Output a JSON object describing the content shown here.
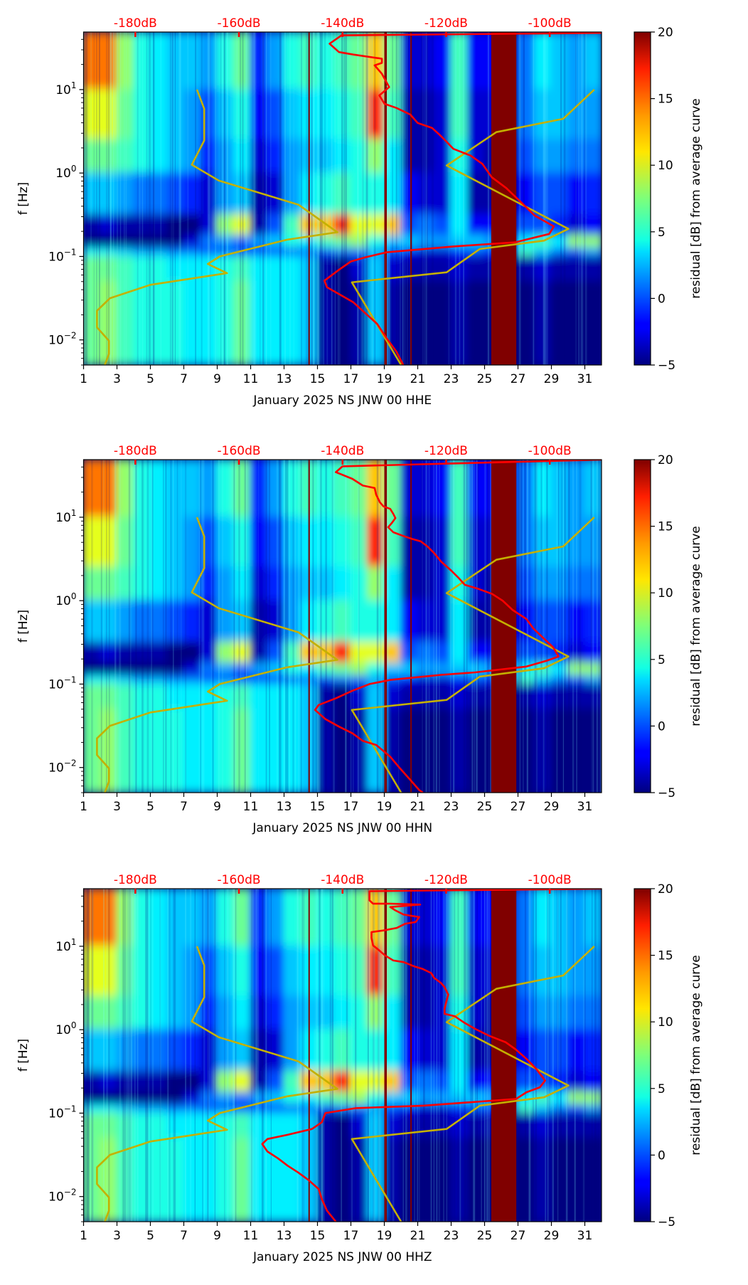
{
  "figure": {
    "ylabel": "f [Hz]",
    "colorbar_label": "residual [dB] from average curve"
  },
  "shared": {
    "xlim": [
      1,
      32
    ],
    "ylim_hz": [
      0.005,
      49
    ],
    "db_lim": [
      -190,
      -90
    ],
    "x_ticks": [
      1,
      3,
      5,
      7,
      9,
      11,
      13,
      15,
      17,
      19,
      21,
      23,
      25,
      27,
      29,
      31
    ],
    "x_tick_labels": [
      "1",
      "3",
      "5",
      "7",
      "9",
      "11",
      "13",
      "15",
      "17",
      "19",
      "21",
      "23",
      "25",
      "27",
      "29",
      "31"
    ],
    "y_ticks": [
      {
        "value": 10,
        "base": "10",
        "exp": "1"
      },
      {
        "value": 1,
        "base": "10",
        "exp": "0"
      },
      {
        "value": 0.1,
        "base": "10",
        "exp": "−1"
      },
      {
        "value": 0.01,
        "base": "10",
        "exp": "−2"
      }
    ],
    "top_ticks": [
      {
        "value": -180,
        "label": "-180dB"
      },
      {
        "value": -160,
        "label": "-160dB"
      },
      {
        "value": -140,
        "label": "-140dB"
      },
      {
        "value": -120,
        "label": "-120dB"
      },
      {
        "value": -100,
        "label": "-100dB"
      }
    ],
    "colorbar": {
      "range": [
        -5,
        20
      ],
      "ticks": [
        -5,
        0,
        5,
        10,
        15,
        20
      ],
      "tick_labels": [
        "−5",
        "0",
        "5",
        "10",
        "15",
        "20"
      ],
      "colormap": "jet"
    },
    "colors": {
      "psd_curve": "#ff0000",
      "noise_model": "#c4b000",
      "gap_marker": "#800000",
      "top_axis": "#ff0000"
    },
    "gap_markers": {
      "thin_lines_day": [
        14.5,
        20.6
      ],
      "thick_line_days": [
        19.0,
        19.15
      ],
      "band_days": [
        25.4,
        26.9
      ],
      "band_value": 20
    },
    "noise_model_low": [
      [
        -168.1,
        1.0
      ],
      [
        -166.7,
        0.77
      ],
      [
        -166.7,
        0.39
      ],
      [
        -169.1,
        0.1
      ],
      [
        -163.9,
        -0.09
      ],
      [
        -148.5,
        -0.38
      ],
      [
        -141.0,
        -0.71
      ],
      [
        -150.8,
        -0.8
      ],
      [
        -163.7,
        -1.0
      ],
      [
        -166.0,
        -1.09
      ],
      [
        -162.3,
        -1.2
      ],
      [
        -177.1,
        -1.34
      ],
      [
        -184.9,
        -1.5
      ],
      [
        -187.4,
        -1.65
      ],
      [
        -187.4,
        -1.85
      ],
      [
        -185.1,
        -2.01
      ],
      [
        -185.1,
        -2.17
      ],
      [
        -185.9,
        -2.3
      ]
    ],
    "noise_model_high": [
      [
        -91.4,
        1.0
      ],
      [
        -97.4,
        0.65
      ],
      [
        -110.3,
        0.49
      ],
      [
        -119.9,
        0.09
      ],
      [
        -96.4,
        -0.67
      ],
      [
        -101.1,
        -0.81
      ],
      [
        -113.5,
        -0.91
      ],
      [
        -119.9,
        -1.19
      ],
      [
        -138.2,
        -1.31
      ],
      [
        -128.7,
        -2.3
      ]
    ],
    "heatmap": {
      "row_edges_log10_hz": [
        1.69,
        1.0,
        0.4,
        0.0,
        -0.5,
        -0.75,
        -0.9,
        -1.0,
        -1.3,
        -2.301
      ],
      "values_by_day": [
        [
          14,
          10,
          7,
          3,
          -4,
          -5,
          4,
          7,
          7
        ],
        [
          14,
          10,
          7,
          3,
          -3,
          -5,
          4,
          7,
          8
        ],
        [
          8,
          7,
          6,
          2,
          -4,
          -5,
          3,
          6,
          6
        ],
        [
          5,
          5,
          5,
          1,
          -4,
          -5,
          2,
          5,
          5
        ],
        [
          4,
          4,
          4,
          1,
          -4,
          -5,
          2,
          5,
          5
        ],
        [
          3,
          3,
          3,
          0,
          -5,
          -5,
          1,
          4,
          5
        ],
        [
          3,
          2,
          2,
          -1,
          -5,
          -3,
          1,
          4,
          4
        ],
        [
          2,
          0,
          -1,
          -3,
          -3,
          1,
          0,
          4,
          4
        ],
        [
          5,
          3,
          2,
          2,
          8,
          2,
          0,
          5,
          5
        ],
        [
          7,
          5,
          4,
          3,
          10,
          1,
          -1,
          6,
          7
        ],
        [
          -1,
          -2,
          -3,
          -4,
          -4,
          2,
          -2,
          4,
          4
        ],
        [
          2,
          0,
          -1,
          -3,
          0,
          3,
          -1,
          4,
          4
        ],
        [
          5,
          3,
          2,
          2,
          6,
          5,
          0,
          4,
          4
        ],
        [
          6,
          4,
          3,
          4,
          12,
          4,
          1,
          3,
          3
        ],
        [
          5,
          4,
          3,
          5,
          12,
          6,
          0,
          -4,
          -4
        ],
        [
          6,
          5,
          4,
          6,
          16,
          7,
          1,
          -5,
          -5
        ],
        [
          7,
          6,
          5,
          5,
          10,
          8,
          1,
          -3,
          -4
        ],
        [
          12,
          16,
          8,
          5,
          10,
          5,
          2,
          3,
          3
        ],
        [
          7,
          6,
          4,
          4,
          12,
          3,
          0,
          -3,
          -4
        ],
        [
          -3,
          -4,
          -4,
          -2,
          0,
          3,
          -2,
          -4,
          -5
        ],
        [
          -3,
          -4,
          -4,
          -3,
          1,
          2,
          -3,
          -4,
          -5
        ],
        [
          -2,
          -3,
          -3,
          -3,
          0,
          2,
          -3,
          -4,
          -5
        ],
        [
          6,
          6,
          5,
          4,
          4,
          3,
          -1,
          -3,
          -4
        ],
        [
          -2,
          -3,
          -3,
          -4,
          -2,
          3,
          0,
          -4,
          -5
        ],
        [
          -2,
          -3,
          -4,
          -4,
          -2,
          2,
          -1,
          -4,
          -5
        ],
        [
          -3,
          -4,
          -4,
          -4,
          -3,
          0,
          -3,
          -5,
          -5
        ],
        [
          1,
          1,
          0,
          -2,
          0,
          4,
          6,
          -4,
          -5
        ],
        [
          4,
          3,
          2,
          0,
          0,
          6,
          3,
          -3,
          -4
        ],
        [
          3,
          3,
          2,
          0,
          -1,
          4,
          1,
          -4,
          -5
        ],
        [
          2,
          2,
          1,
          -2,
          -3,
          8,
          0,
          -4,
          -5
        ],
        [
          3,
          2,
          1,
          -1,
          -2,
          8,
          2,
          -4,
          -5
        ]
      ]
    }
  },
  "chart_data": [
    {
      "type": "heatmap",
      "xlabel": "January 2025 NS JNW 00 HHE",
      "ylabel": "f [Hz]",
      "series": [
        {
          "name": "PSD curve (dB, log10 f)",
          "points": [
            [
              -90,
              1.68
            ],
            [
              -140.2,
              1.65
            ],
            [
              -142.5,
              1.55
            ],
            [
              -140.7,
              1.45
            ],
            [
              -137.9,
              1.42
            ],
            [
              -132.4,
              1.37
            ],
            [
              -132.4,
              1.32
            ],
            [
              -133.8,
              1.29
            ],
            [
              -132.4,
              1.19
            ],
            [
              -131,
              1.03
            ],
            [
              -132.9,
              0.93
            ],
            [
              -131.9,
              0.83
            ],
            [
              -129.6,
              0.78
            ],
            [
              -126.9,
              0.7
            ],
            [
              -125.5,
              0.6
            ],
            [
              -122.7,
              0.54
            ],
            [
              -121.3,
              0.46
            ],
            [
              -120,
              0.38
            ],
            [
              -118.6,
              0.29
            ],
            [
              -115.3,
              0.21
            ],
            [
              -113,
              0.11
            ],
            [
              -111.2,
              -0.05
            ],
            [
              -108.4,
              -0.18
            ],
            [
              -105.7,
              -0.34
            ],
            [
              -102.9,
              -0.51
            ],
            [
              -99.2,
              -0.64
            ],
            [
              -100.1,
              -0.73
            ],
            [
              -104.7,
              -0.8
            ],
            [
              -106.6,
              -0.83
            ],
            [
              -118.6,
              -0.88
            ],
            [
              -131.5,
              -0.95
            ],
            [
              -135.6,
              -1.01
            ],
            [
              -138.4,
              -1.06
            ],
            [
              -140.7,
              -1.16
            ],
            [
              -143.5,
              -1.29
            ],
            [
              -143,
              -1.37
            ],
            [
              -140.7,
              -1.45
            ],
            [
              -137.9,
              -1.55
            ],
            [
              -135.6,
              -1.68
            ],
            [
              -133.3,
              -1.81
            ],
            [
              -131.5,
              -1.98
            ],
            [
              -129.6,
              -2.14
            ],
            [
              -128.2,
              -2.31
            ]
          ]
        }
      ]
    },
    {
      "type": "heatmap",
      "xlabel": "January 2025 NS JNW 00 HHN",
      "ylabel": "f [Hz]",
      "series": [
        {
          "name": "PSD curve (dB, log10 f)",
          "points": [
            [
              -90,
              1.69
            ],
            [
              -140,
              1.61
            ],
            [
              -141.3,
              1.54
            ],
            [
              -138.1,
              1.46
            ],
            [
              -136.1,
              1.38
            ],
            [
              -133.8,
              1.35
            ],
            [
              -133.5,
              1.27
            ],
            [
              -132.8,
              1.18
            ],
            [
              -132.1,
              1.13
            ],
            [
              -130.8,
              1.1
            ],
            [
              -130.2,
              1.04
            ],
            [
              -129.8,
              0.99
            ],
            [
              -130.5,
              0.93
            ],
            [
              -131.2,
              0.88
            ],
            [
              -130.2,
              0.82
            ],
            [
              -128.5,
              0.78
            ],
            [
              -126.6,
              0.74
            ],
            [
              -124.9,
              0.71
            ],
            [
              -123.6,
              0.65
            ],
            [
              -122.3,
              0.57
            ],
            [
              -121,
              0.47
            ],
            [
              -119,
              0.36
            ],
            [
              -117.7,
              0.28
            ],
            [
              -116.4,
              0.19
            ],
            [
              -113.7,
              0.14
            ],
            [
              -111.1,
              0.08
            ],
            [
              -109.1,
              0
            ],
            [
              -107.2,
              -0.11
            ],
            [
              -104.5,
              -0.22
            ],
            [
              -103.2,
              -0.33
            ],
            [
              -101.2,
              -0.45
            ],
            [
              -99.3,
              -0.56
            ],
            [
              -98.3,
              -0.67
            ],
            [
              -100.6,
              -0.72
            ],
            [
              -104.5,
              -0.79
            ],
            [
              -114.4,
              -0.86
            ],
            [
              -121,
              -0.89
            ],
            [
              -130.8,
              -0.95
            ],
            [
              -134.8,
              -1.0
            ],
            [
              -138.1,
              -1.08
            ],
            [
              -141.3,
              -1.17
            ],
            [
              -144.6,
              -1.25
            ],
            [
              -145.3,
              -1.31
            ],
            [
              -143.3,
              -1.42
            ],
            [
              -140.7,
              -1.51
            ],
            [
              -138.1,
              -1.59
            ],
            [
              -136.1,
              -1.68
            ],
            [
              -133.5,
              -1.73
            ],
            [
              -130.8,
              -1.87
            ],
            [
              -128.9,
              -2.01
            ],
            [
              -126.9,
              -2.15
            ],
            [
              -125.2,
              -2.27
            ],
            [
              -124.5,
              -2.3
            ]
          ]
        }
      ]
    },
    {
      "type": "heatmap",
      "xlabel": "January 2025 NS JNW 00 HHZ",
      "ylabel": "f [Hz]",
      "series": [
        {
          "name": "PSD curve (dB, log10 f)",
          "points": [
            [
              -90,
              1.69
            ],
            [
              -134.8,
              1.66
            ],
            [
              -134.8,
              1.55
            ],
            [
              -134.1,
              1.51
            ],
            [
              -130.8,
              1.51
            ],
            [
              -125,
              1.5
            ],
            [
              -130.8,
              1.47
            ],
            [
              -129.8,
              1.43
            ],
            [
              -128.2,
              1.38
            ],
            [
              -125.2,
              1.35
            ],
            [
              -125.9,
              1.29
            ],
            [
              -127.9,
              1.27
            ],
            [
              -129.5,
              1.22
            ],
            [
              -132.1,
              1.19
            ],
            [
              -134.4,
              1.17
            ],
            [
              -134.4,
              1.1
            ],
            [
              -134.1,
              1.01
            ],
            [
              -133.1,
              0.96
            ],
            [
              -131.8,
              0.89
            ],
            [
              -130.2,
              0.83
            ],
            [
              -128.2,
              0.81
            ],
            [
              -126.2,
              0.76
            ],
            [
              -124.6,
              0.73
            ],
            [
              -122.9,
              0.68
            ],
            [
              -122.3,
              0.62
            ],
            [
              -121,
              0.56
            ],
            [
              -120.3,
              0.51
            ],
            [
              -119.6,
              0.42
            ],
            [
              -120,
              0.33
            ],
            [
              -120.3,
              0.25
            ],
            [
              -120.3,
              0.19
            ],
            [
              -118.3,
              0.16
            ],
            [
              -116.4,
              0.08
            ],
            [
              -114.4,
              0.01
            ],
            [
              -111.8,
              -0.07
            ],
            [
              -108.5,
              -0.15
            ],
            [
              -106.5,
              -0.24
            ],
            [
              -104.5,
              -0.35
            ],
            [
              -102.6,
              -0.47
            ],
            [
              -100.9,
              -0.61
            ],
            [
              -101.9,
              -0.69
            ],
            [
              -104.5,
              -0.75
            ],
            [
              -106.5,
              -0.83
            ],
            [
              -124.3,
              -0.91
            ],
            [
              -137.4,
              -0.94
            ],
            [
              -143.3,
              -1.0
            ],
            [
              -144,
              -1.11
            ],
            [
              -145.9,
              -1.19
            ],
            [
              -150.6,
              -1.26
            ],
            [
              -154.5,
              -1.31
            ],
            [
              -155.5,
              -1.37
            ],
            [
              -154.5,
              -1.46
            ],
            [
              -152.5,
              -1.54
            ],
            [
              -150.6,
              -1.63
            ],
            [
              -148.6,
              -1.71
            ],
            [
              -146.6,
              -1.8
            ],
            [
              -144.6,
              -1.91
            ],
            [
              -144,
              -2.03
            ],
            [
              -143,
              -2.17
            ],
            [
              -141.3,
              -2.3
            ]
          ]
        }
      ]
    }
  ]
}
